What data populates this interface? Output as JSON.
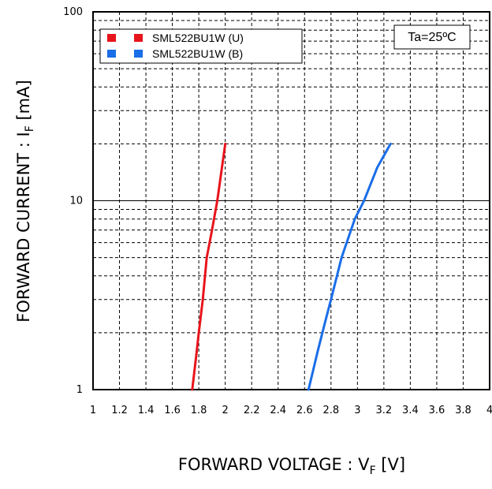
{
  "chart_data": {
    "type": "line",
    "title": "",
    "xlabel_main": "FORWARD VOLTAGE : V",
    "xlabel_sub": "F",
    "xlabel_unit": " [V]",
    "ylabel_main": "FORWARD CURRENT : I",
    "ylabel_sub": "F",
    "ylabel_unit": " [mA]",
    "xlim": [
      1,
      4
    ],
    "ylim": [
      1,
      100
    ],
    "y_scale": "log",
    "grid": "dashed",
    "x_ticks": [
      1,
      1.2,
      1.4,
      1.6,
      1.8,
      2,
      2.2,
      2.4,
      2.6,
      2.8,
      3,
      3.2,
      3.4,
      3.6,
      3.8,
      4
    ],
    "x_tick_labels": [
      "1",
      "1.2",
      "1.4",
      "1.6",
      "1.8",
      "2",
      "2.2",
      "2.4",
      "2.6",
      "2.8",
      "3",
      "3.2",
      "3.4",
      "3.6",
      "3.8",
      "4"
    ],
    "y_ticks": [
      1,
      10,
      100
    ],
    "y_tick_labels": [
      "1",
      "10",
      "100"
    ],
    "annotation": "Ta=25ºC",
    "legend_position": "top-left",
    "series": [
      {
        "name": "SML522BU1W (U)",
        "color": "#e8141c",
        "x": [
          1.75,
          1.78,
          1.8,
          1.83,
          1.86,
          1.9,
          1.94,
          2.0
        ],
        "y": [
          1,
          1.5,
          2,
          3,
          5,
          7,
          10,
          20
        ]
      },
      {
        "name": "SML522BU1W (B)",
        "color": "#1a6ee8",
        "x": [
          2.63,
          2.7,
          2.75,
          2.8,
          2.88,
          2.98,
          3.05,
          3.15,
          3.25
        ],
        "y": [
          1,
          1.6,
          2.2,
          3,
          5,
          8,
          10,
          15,
          20
        ]
      }
    ]
  }
}
